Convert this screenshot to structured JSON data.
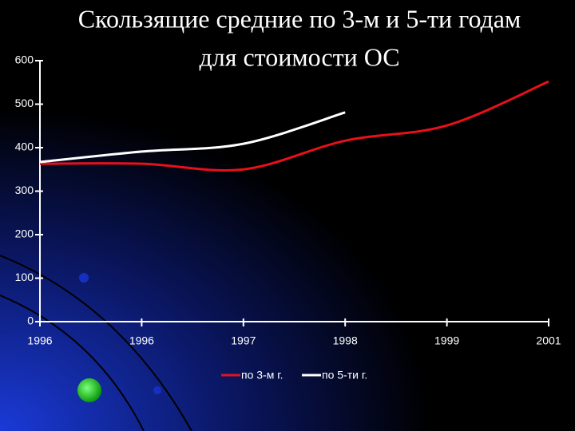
{
  "chart_data": {
    "type": "line",
    "title": [
      "Скользящие средние по 3-м и 5-ти годам",
      "для стоимости ОС"
    ],
    "categories": [
      "1996",
      "1996",
      "1997",
      "1998",
      "1999",
      "2001"
    ],
    "series": [
      {
        "name": "по 3-м г.",
        "color": "#e8101a",
        "values": [
          363,
          363,
          350,
          416,
          451,
          552
        ]
      },
      {
        "name": "по 5-ти г.",
        "color": "#ffffff",
        "values": [
          367,
          391,
          409,
          481,
          null,
          null
        ]
      }
    ],
    "ylim": [
      0,
      600
    ],
    "yticks": [
      0,
      100,
      200,
      300,
      400,
      500,
      600
    ],
    "grid": false
  }
}
